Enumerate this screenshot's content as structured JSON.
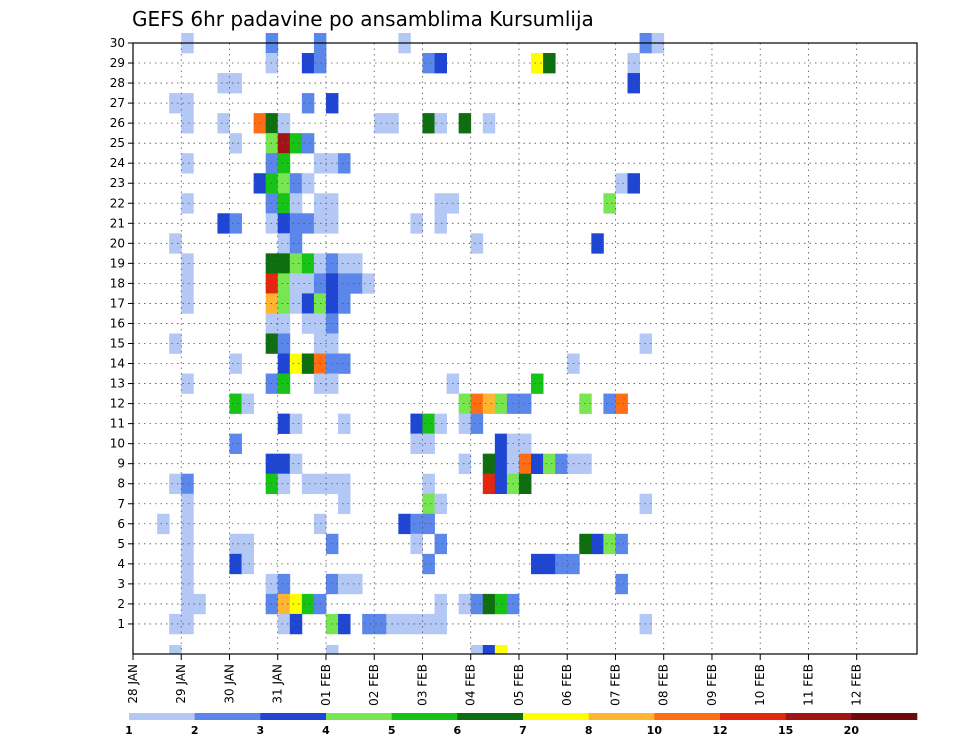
{
  "chart_data": {
    "type": "heatmap",
    "title": "GEFS 6hr padavine po ansamblima Kursumlija",
    "xlabel": "",
    "ylabel": "",
    "x_tick_labels": [
      "28 JAN",
      "29 JAN",
      "30 JAN",
      "31 JAN",
      "01 FEB",
      "02 FEB",
      "03 FEB",
      "04 FEB",
      "05 FEB",
      "06 FEB",
      "07 FEB",
      "08 FEB",
      "09 FEB",
      "10 FEB",
      "11 FEB",
      "12 FEB"
    ],
    "x_time_steps": 61,
    "x_step_hours": 6,
    "y_tick_labels": [
      "1",
      "2",
      "3",
      "4",
      "5",
      "6",
      "7",
      "8",
      "9",
      "10",
      "11",
      "12",
      "13",
      "14",
      "15",
      "16",
      "17",
      "18",
      "19",
      "20",
      "21",
      "22",
      "23",
      "24",
      "25",
      "26",
      "27",
      "28",
      "29",
      "30"
    ],
    "ylim": [
      0,
      30
    ],
    "grid": true,
    "colorbar": {
      "labels": [
        "1",
        "2",
        "3",
        "4",
        "5",
        "6",
        "7",
        "8",
        "10",
        "12",
        "15",
        "20"
      ],
      "colors": [
        "#b4c8f5",
        "#5c87ea",
        "#1e46d2",
        "#78e650",
        "#18c318",
        "#0f6e0f",
        "#ffff00",
        "#ffb432",
        "#ff6e14",
        "#e1280f",
        "#a01414",
        "#6e0a0a"
      ]
    },
    "cells": [
      [
        2,
        30,
        1
      ],
      [
        9,
        30,
        2
      ],
      [
        13,
        30,
        2
      ],
      [
        20,
        30,
        1
      ],
      [
        40,
        30,
        2
      ],
      [
        41,
        30,
        1
      ],
      [
        9,
        29,
        1
      ],
      [
        12,
        29,
        3
      ],
      [
        13,
        29,
        2
      ],
      [
        22,
        29,
        2
      ],
      [
        23,
        29,
        3
      ],
      [
        31,
        29,
        7
      ],
      [
        32,
        29,
        6
      ],
      [
        39,
        29,
        1
      ],
      [
        5,
        28,
        1
      ],
      [
        6,
        28,
        1
      ],
      [
        39,
        28,
        3
      ],
      [
        1,
        27,
        1
      ],
      [
        2,
        27,
        1
      ],
      [
        12,
        27,
        2
      ],
      [
        14,
        27,
        3
      ],
      [
        2,
        26,
        1
      ],
      [
        5,
        26,
        1
      ],
      [
        8,
        26,
        9
      ],
      [
        9,
        26,
        6
      ],
      [
        10,
        26,
        1
      ],
      [
        18,
        26,
        1
      ],
      [
        19,
        26,
        1
      ],
      [
        22,
        26,
        6
      ],
      [
        23,
        26,
        1
      ],
      [
        25,
        26,
        6
      ],
      [
        27,
        26,
        1
      ],
      [
        6,
        25,
        1
      ],
      [
        9,
        25,
        4
      ],
      [
        10,
        25,
        11
      ],
      [
        11,
        25,
        5
      ],
      [
        12,
        25,
        2
      ],
      [
        2,
        24,
        1
      ],
      [
        9,
        24,
        2
      ],
      [
        10,
        24,
        5
      ],
      [
        13,
        24,
        1
      ],
      [
        14,
        24,
        1
      ],
      [
        15,
        24,
        2
      ],
      [
        8,
        23,
        3
      ],
      [
        9,
        23,
        5
      ],
      [
        10,
        23,
        4
      ],
      [
        11,
        23,
        2
      ],
      [
        12,
        23,
        1
      ],
      [
        38,
        23,
        1
      ],
      [
        39,
        23,
        3
      ],
      [
        2,
        22,
        1
      ],
      [
        9,
        22,
        2
      ],
      [
        10,
        22,
        5
      ],
      [
        11,
        22,
        1
      ],
      [
        13,
        22,
        1
      ],
      [
        14,
        22,
        1
      ],
      [
        23,
        22,
        1
      ],
      [
        24,
        22,
        1
      ],
      [
        37,
        22,
        4
      ],
      [
        5,
        21,
        3
      ],
      [
        6,
        21,
        2
      ],
      [
        9,
        21,
        1
      ],
      [
        10,
        21,
        3
      ],
      [
        11,
        21,
        2
      ],
      [
        12,
        21,
        2
      ],
      [
        13,
        21,
        1
      ],
      [
        14,
        21,
        1
      ],
      [
        21,
        21,
        1
      ],
      [
        23,
        21,
        1
      ],
      [
        1,
        20,
        1
      ],
      [
        10,
        20,
        1
      ],
      [
        11,
        20,
        2
      ],
      [
        26,
        20,
        1
      ],
      [
        36,
        20,
        3
      ],
      [
        2,
        19,
        1
      ],
      [
        9,
        19,
        6
      ],
      [
        10,
        19,
        6
      ],
      [
        11,
        19,
        4
      ],
      [
        12,
        19,
        5
      ],
      [
        13,
        19,
        1
      ],
      [
        14,
        19,
        2
      ],
      [
        15,
        19,
        1
      ],
      [
        16,
        19,
        1
      ],
      [
        2,
        18,
        1
      ],
      [
        9,
        18,
        10
      ],
      [
        10,
        18,
        4
      ],
      [
        11,
        18,
        1
      ],
      [
        12,
        18,
        1
      ],
      [
        13,
        18,
        2
      ],
      [
        14,
        18,
        3
      ],
      [
        15,
        18,
        2
      ],
      [
        16,
        18,
        2
      ],
      [
        17,
        18,
        1
      ],
      [
        2,
        17,
        1
      ],
      [
        9,
        17,
        8
      ],
      [
        10,
        17,
        4
      ],
      [
        11,
        17,
        1
      ],
      [
        12,
        17,
        3
      ],
      [
        13,
        17,
        4
      ],
      [
        14,
        17,
        3
      ],
      [
        15,
        17,
        2
      ],
      [
        9,
        16,
        1
      ],
      [
        10,
        16,
        1
      ],
      [
        12,
        16,
        1
      ],
      [
        13,
        16,
        1
      ],
      [
        14,
        16,
        2
      ],
      [
        1,
        15,
        1
      ],
      [
        9,
        15,
        6
      ],
      [
        10,
        15,
        2
      ],
      [
        13,
        15,
        1
      ],
      [
        14,
        15,
        1
      ],
      [
        40,
        15,
        1
      ],
      [
        6,
        14,
        1
      ],
      [
        10,
        14,
        3
      ],
      [
        11,
        14,
        7
      ],
      [
        12,
        14,
        6
      ],
      [
        13,
        14,
        9
      ],
      [
        14,
        14,
        2
      ],
      [
        15,
        14,
        2
      ],
      [
        34,
        14,
        1
      ],
      [
        2,
        13,
        1
      ],
      [
        9,
        13,
        2
      ],
      [
        10,
        13,
        5
      ],
      [
        13,
        13,
        1
      ],
      [
        14,
        13,
        1
      ],
      [
        24,
        13,
        1
      ],
      [
        31,
        13,
        5
      ],
      [
        6,
        12,
        5
      ],
      [
        7,
        12,
        1
      ],
      [
        25,
        12,
        4
      ],
      [
        26,
        12,
        9
      ],
      [
        27,
        12,
        8
      ],
      [
        28,
        12,
        4
      ],
      [
        29,
        12,
        2
      ],
      [
        30,
        12,
        2
      ],
      [
        35,
        12,
        4
      ],
      [
        37,
        12,
        2
      ],
      [
        38,
        12,
        9
      ],
      [
        10,
        11,
        3
      ],
      [
        11,
        11,
        1
      ],
      [
        15,
        11,
        1
      ],
      [
        21,
        11,
        3
      ],
      [
        22,
        11,
        5
      ],
      [
        23,
        11,
        1
      ],
      [
        25,
        11,
        1
      ],
      [
        26,
        11,
        2
      ],
      [
        6,
        10,
        2
      ],
      [
        21,
        10,
        1
      ],
      [
        22,
        10,
        1
      ],
      [
        28,
        10,
        3
      ],
      [
        29,
        10,
        1
      ],
      [
        30,
        10,
        1
      ],
      [
        9,
        9,
        3
      ],
      [
        10,
        9,
        3
      ],
      [
        11,
        9,
        1
      ],
      [
        25,
        9,
        1
      ],
      [
        27,
        9,
        6
      ],
      [
        28,
        9,
        3
      ],
      [
        29,
        9,
        1
      ],
      [
        30,
        9,
        9
      ],
      [
        31,
        9,
        3
      ],
      [
        32,
        9,
        4
      ],
      [
        33,
        9,
        2
      ],
      [
        34,
        9,
        1
      ],
      [
        35,
        9,
        1
      ],
      [
        1,
        8,
        1
      ],
      [
        2,
        8,
        2
      ],
      [
        9,
        8,
        5
      ],
      [
        10,
        8,
        1
      ],
      [
        12,
        8,
        1
      ],
      [
        13,
        8,
        1
      ],
      [
        14,
        8,
        1
      ],
      [
        15,
        8,
        1
      ],
      [
        22,
        8,
        1
      ],
      [
        27,
        8,
        10
      ],
      [
        28,
        8,
        3
      ],
      [
        29,
        8,
        4
      ],
      [
        30,
        8,
        6
      ],
      [
        2,
        7,
        1
      ],
      [
        15,
        7,
        1
      ],
      [
        22,
        7,
        4
      ],
      [
        23,
        7,
        1
      ],
      [
        40,
        7,
        1
      ],
      [
        0,
        6,
        1
      ],
      [
        2,
        6,
        1
      ],
      [
        13,
        6,
        1
      ],
      [
        20,
        6,
        3
      ],
      [
        21,
        6,
        2
      ],
      [
        22,
        6,
        2
      ],
      [
        2,
        5,
        1
      ],
      [
        6,
        5,
        1
      ],
      [
        7,
        5,
        1
      ],
      [
        14,
        5,
        2
      ],
      [
        21,
        5,
        1
      ],
      [
        23,
        5,
        2
      ],
      [
        35,
        5,
        6
      ],
      [
        36,
        5,
        3
      ],
      [
        37,
        5,
        4
      ],
      [
        38,
        5,
        2
      ],
      [
        2,
        4,
        1
      ],
      [
        6,
        4,
        3
      ],
      [
        7,
        4,
        1
      ],
      [
        22,
        4,
        2
      ],
      [
        31,
        4,
        3
      ],
      [
        32,
        4,
        3
      ],
      [
        33,
        4,
        2
      ],
      [
        34,
        4,
        2
      ],
      [
        2,
        3,
        1
      ],
      [
        9,
        3,
        1
      ],
      [
        10,
        3,
        2
      ],
      [
        14,
        3,
        2
      ],
      [
        15,
        3,
        1
      ],
      [
        16,
        3,
        1
      ],
      [
        38,
        3,
        2
      ],
      [
        2,
        2,
        1
      ],
      [
        3,
        2,
        1
      ],
      [
        9,
        2,
        2
      ],
      [
        10,
        2,
        8
      ],
      [
        11,
        2,
        7
      ],
      [
        12,
        2,
        5
      ],
      [
        13,
        2,
        2
      ],
      [
        23,
        2,
        1
      ],
      [
        25,
        2,
        1
      ],
      [
        26,
        2,
        2
      ],
      [
        27,
        2,
        6
      ],
      [
        28,
        2,
        5
      ],
      [
        29,
        2,
        2
      ],
      [
        1,
        1,
        1
      ],
      [
        2,
        1,
        1
      ],
      [
        10,
        1,
        1
      ],
      [
        11,
        1,
        3
      ],
      [
        14,
        1,
        4
      ],
      [
        15,
        1,
        3
      ],
      [
        17,
        1,
        2
      ],
      [
        18,
        1,
        2
      ],
      [
        19,
        1,
        1
      ],
      [
        20,
        1,
        1
      ],
      [
        21,
        1,
        1
      ],
      [
        22,
        1,
        1
      ],
      [
        23,
        1,
        1
      ],
      [
        40,
        1,
        1
      ],
      [
        1,
        0,
        1
      ],
      [
        14,
        0,
        1
      ],
      [
        26,
        0,
        1
      ],
      [
        27,
        0,
        3
      ],
      [
        28,
        0,
        7
      ]
    ]
  }
}
